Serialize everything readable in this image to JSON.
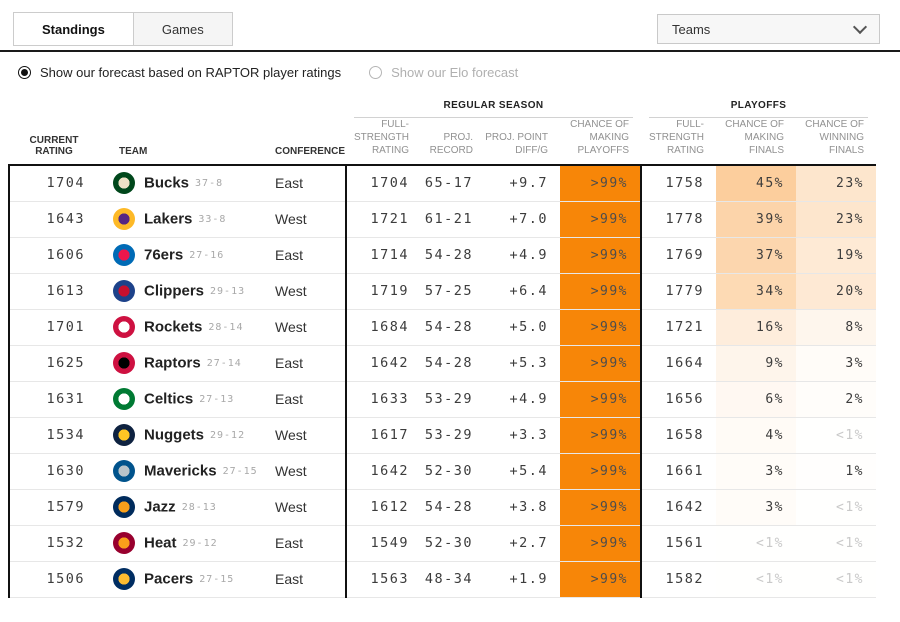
{
  "tabs": {
    "standings": "Standings",
    "games": "Games"
  },
  "teams_dropdown": {
    "label": "Teams"
  },
  "forecast_toggle": {
    "raptor": "Show our forecast based on RAPTOR player ratings",
    "elo": "Show our Elo forecast"
  },
  "colors": {
    "accent": "#f78608",
    "accent_rgb": "247,134,14",
    "muted_text": "#c9c9c9"
  },
  "table": {
    "group_headers": {
      "regular_season": "REGULAR SEASON",
      "playoffs": "PLAYOFFS"
    },
    "columns": {
      "current_rating": "Current Rating",
      "team": "Team",
      "conference": "Conference",
      "fs_rating": "Full-Strength Rating",
      "proj_record": "Proj. Record",
      "proj_diff": "Proj. Point Diff/G",
      "playoffs": "Chance of Making Playoffs",
      "po_fs_rating": "Full-Strength Rating",
      "make_finals": "Chance of Making Finals",
      "win_finals": "Chance of Winning Finals"
    },
    "rows": [
      {
        "current_rating": "1704",
        "team": "Bucks",
        "record": "37-8",
        "conference": "East",
        "fs_rating": "1704",
        "proj_record": "65-17",
        "proj_diff": "+9.7",
        "playoffs": ">99%",
        "po_fs_rating": "1758",
        "make_finals": "45%",
        "make_finals_num": 45,
        "win_finals": "23%",
        "win_finals_num": 23,
        "logo": [
          "#00471B",
          "#EEE1C6"
        ]
      },
      {
        "current_rating": "1643",
        "team": "Lakers",
        "record": "33-8",
        "conference": "West",
        "fs_rating": "1721",
        "proj_record": "61-21",
        "proj_diff": "+7.0",
        "playoffs": ">99%",
        "po_fs_rating": "1778",
        "make_finals": "39%",
        "make_finals_num": 39,
        "win_finals": "23%",
        "win_finals_num": 23,
        "logo": [
          "#FDB927",
          "#552583"
        ]
      },
      {
        "current_rating": "1606",
        "team": "76ers",
        "record": "27-16",
        "conference": "East",
        "fs_rating": "1714",
        "proj_record": "54-28",
        "proj_diff": "+4.9",
        "playoffs": ">99%",
        "po_fs_rating": "1769",
        "make_finals": "37%",
        "make_finals_num": 37,
        "win_finals": "19%",
        "win_finals_num": 19,
        "logo": [
          "#006BB6",
          "#ED174C"
        ]
      },
      {
        "current_rating": "1613",
        "team": "Clippers",
        "record": "29-13",
        "conference": "West",
        "fs_rating": "1719",
        "proj_record": "57-25",
        "proj_diff": "+6.4",
        "playoffs": ">99%",
        "po_fs_rating": "1779",
        "make_finals": "34%",
        "make_finals_num": 34,
        "win_finals": "20%",
        "win_finals_num": 20,
        "logo": [
          "#1D428A",
          "#C8102E"
        ]
      },
      {
        "current_rating": "1701",
        "team": "Rockets",
        "record": "28-14",
        "conference": "West",
        "fs_rating": "1684",
        "proj_record": "54-28",
        "proj_diff": "+5.0",
        "playoffs": ">99%",
        "po_fs_rating": "1721",
        "make_finals": "16%",
        "make_finals_num": 16,
        "win_finals": "8%",
        "win_finals_num": 8,
        "logo": [
          "#CE1141",
          "#FFFFFF"
        ]
      },
      {
        "current_rating": "1625",
        "team": "Raptors",
        "record": "27-14",
        "conference": "East",
        "fs_rating": "1642",
        "proj_record": "54-28",
        "proj_diff": "+5.3",
        "playoffs": ">99%",
        "po_fs_rating": "1664",
        "make_finals": "9%",
        "make_finals_num": 9,
        "win_finals": "3%",
        "win_finals_num": 3,
        "logo": [
          "#CE1141",
          "#000000"
        ]
      },
      {
        "current_rating": "1631",
        "team": "Celtics",
        "record": "27-13",
        "conference": "East",
        "fs_rating": "1633",
        "proj_record": "53-29",
        "proj_diff": "+4.9",
        "playoffs": ">99%",
        "po_fs_rating": "1656",
        "make_finals": "6%",
        "make_finals_num": 6,
        "win_finals": "2%",
        "win_finals_num": 2,
        "logo": [
          "#007A33",
          "#FFFFFF"
        ]
      },
      {
        "current_rating": "1534",
        "team": "Nuggets",
        "record": "29-12",
        "conference": "West",
        "fs_rating": "1617",
        "proj_record": "53-29",
        "proj_diff": "+3.3",
        "playoffs": ">99%",
        "po_fs_rating": "1658",
        "make_finals": "4%",
        "make_finals_num": 4,
        "win_finals": "<1%",
        "win_finals_num": 0.5,
        "logo": [
          "#0E2240",
          "#FEC524"
        ]
      },
      {
        "current_rating": "1630",
        "team": "Mavericks",
        "record": "27-15",
        "conference": "West",
        "fs_rating": "1642",
        "proj_record": "52-30",
        "proj_diff": "+5.4",
        "playoffs": ">99%",
        "po_fs_rating": "1661",
        "make_finals": "3%",
        "make_finals_num": 3,
        "win_finals": "1%",
        "win_finals_num": 1,
        "logo": [
          "#00538C",
          "#B8C4CA"
        ]
      },
      {
        "current_rating": "1579",
        "team": "Jazz",
        "record": "28-13",
        "conference": "West",
        "fs_rating": "1612",
        "proj_record": "54-28",
        "proj_diff": "+3.8",
        "playoffs": ">99%",
        "po_fs_rating": "1642",
        "make_finals": "3%",
        "make_finals_num": 3,
        "win_finals": "<1%",
        "win_finals_num": 0.5,
        "logo": [
          "#002B5C",
          "#F9A01B"
        ]
      },
      {
        "current_rating": "1532",
        "team": "Heat",
        "record": "29-12",
        "conference": "East",
        "fs_rating": "1549",
        "proj_record": "52-30",
        "proj_diff": "+2.7",
        "playoffs": ">99%",
        "po_fs_rating": "1561",
        "make_finals": "<1%",
        "make_finals_num": 0.5,
        "win_finals": "<1%",
        "win_finals_num": 0.5,
        "logo": [
          "#98002E",
          "#F9A01B"
        ]
      },
      {
        "current_rating": "1506",
        "team": "Pacers",
        "record": "27-15",
        "conference": "East",
        "fs_rating": "1563",
        "proj_record": "48-34",
        "proj_diff": "+1.9",
        "playoffs": ">99%",
        "po_fs_rating": "1582",
        "make_finals": "<1%",
        "make_finals_num": 0.5,
        "win_finals": "<1%",
        "win_finals_num": 0.5,
        "logo": [
          "#002D62",
          "#FDBB30"
        ]
      }
    ]
  }
}
